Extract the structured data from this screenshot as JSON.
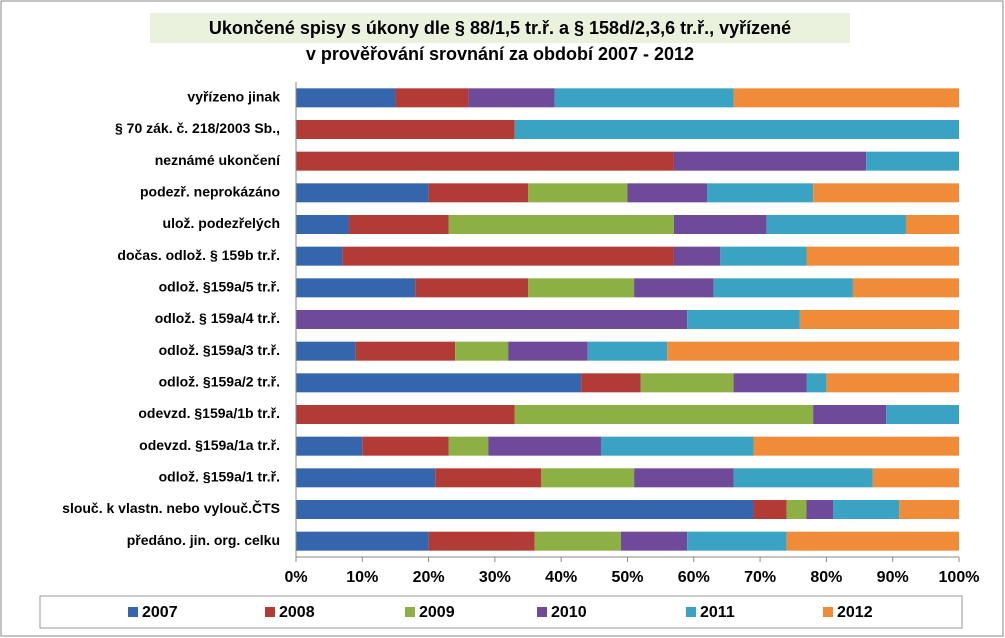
{
  "chart_data": {
    "type": "stacked-bar-horizontal",
    "title": [
      "Ukončené spisy s úkony dle § 88/1,5 tr.ř. a § 158d/2,3,6 tr.ř., vyřízené",
      "v prověřování srovnání za období 2007 - 2012"
    ],
    "categories": [
      "vyřízeno jinak",
      "§ 70 zák. č. 218/2003 Sb.,",
      "neznámé ukončení",
      "podezř. neprokázáno",
      "ulož. podezřelých",
      "dočas. odlož. § 159b tr.ř.",
      "odlož. §159a/5 tr.ř.",
      "odlož. § 159a/4 tr.ř.",
      "odlož. §159a/3 tr.ř.",
      "odlož. §159a/2 tr.ř.",
      "odevzd. §159a/1b tr.ř.",
      "odevzd. §159a/1a tr.ř.",
      "odlož. §159a/1 tr.ř.",
      "slouč. k vlastn. nebo vylouč.ČTS",
      "předáno. jin. org. celku"
    ],
    "series": [
      {
        "name": "2007",
        "color": "#3566ad",
        "values": [
          15,
          0,
          0,
          20,
          8,
          7,
          18,
          0,
          9,
          43,
          0,
          10,
          21,
          69,
          20
        ]
      },
      {
        "name": "2008",
        "color": "#b23b36",
        "values": [
          11,
          33,
          57,
          15,
          15,
          50,
          17,
          0,
          15,
          9,
          33,
          13,
          16,
          5,
          16
        ]
      },
      {
        "name": "2009",
        "color": "#8cb043",
        "values": [
          0,
          0,
          0,
          15,
          34,
          0,
          16,
          0,
          8,
          14,
          45,
          6,
          14,
          3,
          13
        ]
      },
      {
        "name": "2010",
        "color": "#6f4a9b",
        "values": [
          13,
          0,
          29,
          12,
          14,
          7,
          12,
          59,
          12,
          11,
          11,
          17,
          15,
          4,
          10
        ]
      },
      {
        "name": "2011",
        "color": "#3aa2c3",
        "values": [
          27,
          67,
          14,
          16,
          21,
          13,
          21,
          17,
          12,
          3,
          11,
          23,
          21,
          10,
          15
        ]
      },
      {
        "name": "2012",
        "color": "#f08b38",
        "values": [
          34,
          0,
          0,
          22,
          8,
          23,
          16,
          24,
          44,
          20,
          0,
          31,
          13,
          9,
          26
        ]
      }
    ],
    "xlim": [
      0,
      100
    ],
    "xticks": [
      {
        "value": 0,
        "label": "0%"
      },
      {
        "value": 10,
        "label": "10%"
      },
      {
        "value": 20,
        "label": "20%"
      },
      {
        "value": 30,
        "label": "30%"
      },
      {
        "value": 40,
        "label": "40%"
      },
      {
        "value": 50,
        "label": "50%"
      },
      {
        "value": 60,
        "label": "60%"
      },
      {
        "value": 70,
        "label": "70%"
      },
      {
        "value": 80,
        "label": "80%"
      },
      {
        "value": 90,
        "label": "90%"
      },
      {
        "value": 100,
        "label": "100%"
      }
    ],
    "legend": "bottom"
  }
}
